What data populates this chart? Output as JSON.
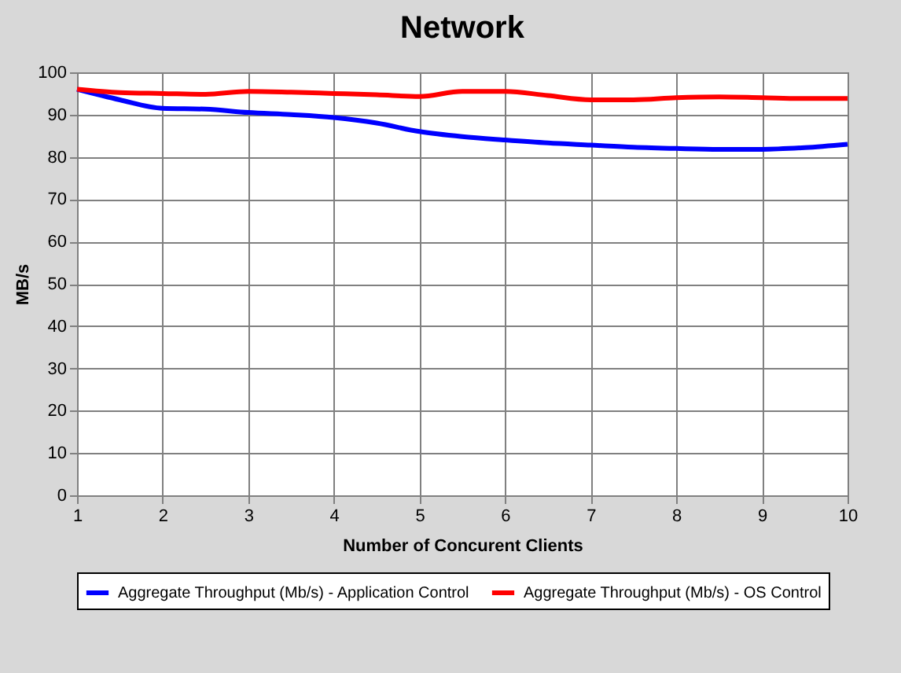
{
  "chart_data": {
    "type": "line",
    "title": "Network",
    "xlabel": "Number of Concurent Clients",
    "ylabel": "MB/s",
    "x": [
      1,
      1.5,
      2,
      2.5,
      3,
      3.5,
      4,
      4.5,
      5,
      5.5,
      6,
      6.5,
      7,
      7.5,
      8,
      8.5,
      9,
      9.5,
      10
    ],
    "series": [
      {
        "name": "Aggregate Throughput (Mb/s) - Application Control",
        "color": "#0000ff",
        "values": [
          96,
          93.5,
          91.5,
          91.3,
          90.5,
          90,
          89.3,
          88,
          86,
          84.8,
          84,
          83.3,
          82.8,
          82.3,
          82,
          81.8,
          81.8,
          82.2,
          83
        ]
      },
      {
        "name": "Aggregate Throughput (Mb/s) - OS Control",
        "color": "#ff0000",
        "values": [
          96,
          95.2,
          95,
          94.8,
          95.5,
          95.3,
          95,
          94.7,
          94.3,
          95.5,
          95.5,
          94.5,
          93.5,
          93.5,
          94,
          94.2,
          94,
          93.8,
          93.8
        ]
      }
    ],
    "xlim": [
      1,
      10
    ],
    "xticks": [
      1,
      2,
      3,
      4,
      5,
      6,
      7,
      8,
      9,
      10
    ],
    "ylim": [
      0,
      100
    ],
    "yticks": [
      0,
      10,
      20,
      30,
      40,
      50,
      60,
      70,
      80,
      90,
      100
    ],
    "grid": true,
    "legend": "bottom",
    "marker": "none",
    "line_style": "solid"
  }
}
